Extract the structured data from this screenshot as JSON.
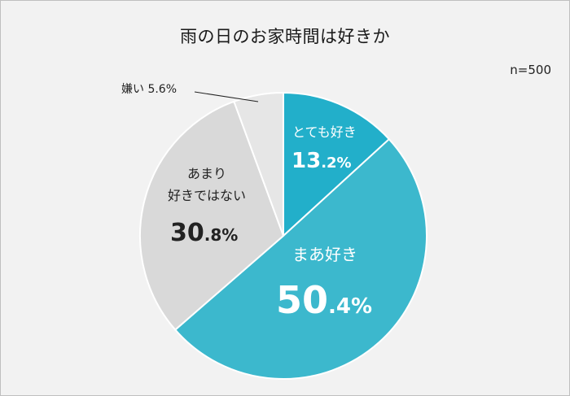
{
  "chart_data": {
    "type": "pie",
    "title": "雨の日のお家時間は好きか",
    "note": "n=500",
    "unit": "%",
    "slices": [
      {
        "label": "とても好き",
        "value": 13.2,
        "color": "#22afca",
        "int": "13",
        "dec": ".2%"
      },
      {
        "label": "まあ好き",
        "value": 50.4,
        "color": "#3cb8cd",
        "int": "50",
        "dec": ".4%"
      },
      {
        "label": "あまり好きではない",
        "value": 30.8,
        "color": "#d9d9d9",
        "int": "30",
        "dec": ".8%",
        "lines": [
          "あまり",
          "好きではない"
        ]
      },
      {
        "label": "嫌い",
        "value": 5.6,
        "color": "#e6e6e6",
        "text": "嫌い 5.6%"
      }
    ]
  }
}
